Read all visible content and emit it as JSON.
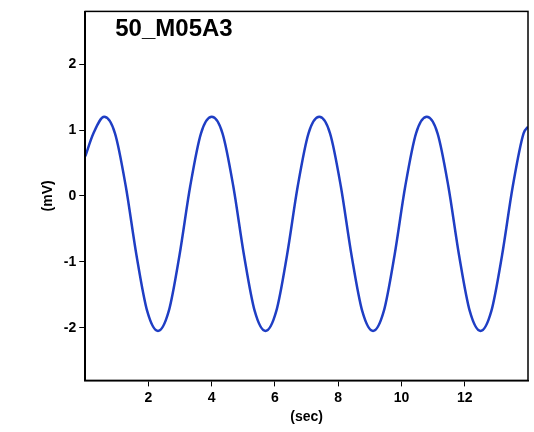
{
  "chart_data": {
    "type": "line",
    "title": "50_M05A3",
    "x_label": "(sec)",
    "y_label": "(mV)",
    "x": [
      0,
      0.26,
      0.6,
      0.94,
      1.28,
      1.62,
      1.96,
      2.3,
      2.64,
      2.98,
      3.32,
      3.66,
      4.0,
      4.34,
      4.68,
      5.02,
      5.36,
      5.7,
      6.04,
      6.38,
      6.72,
      7.06,
      7.4,
      7.74,
      8.08,
      8.42,
      8.76,
      9.1,
      9.44,
      9.78,
      10.12,
      10.46,
      10.8,
      11.14,
      11.48,
      11.82,
      12.16,
      12.5,
      12.84,
      13.18,
      13.52,
      13.86,
      14.0
    ],
    "values": [
      0.6,
      0.95,
      1.2,
      0.95,
      0.15,
      -0.9,
      -1.75,
      -2.05,
      -1.75,
      -0.9,
      0.15,
      0.95,
      1.2,
      0.95,
      0.15,
      -0.9,
      -1.75,
      -2.05,
      -1.75,
      -0.9,
      0.15,
      0.95,
      1.2,
      0.95,
      0.15,
      -0.9,
      -1.75,
      -2.05,
      -1.75,
      -0.9,
      0.15,
      0.95,
      1.2,
      0.95,
      0.15,
      -0.9,
      -1.75,
      -2.05,
      -1.75,
      -0.9,
      0.15,
      0.95,
      1.05
    ],
    "color": "#1f3ec4",
    "xlim": [
      0,
      14
    ],
    "xticks": [
      2,
      4,
      6,
      8,
      10,
      12
    ],
    "ylim": [
      -2.8,
      2.8
    ],
    "yticks": [
      -2,
      -1,
      0,
      1,
      2
    ],
    "grid": false,
    "marker": "none",
    "line_style": "solid"
  }
}
